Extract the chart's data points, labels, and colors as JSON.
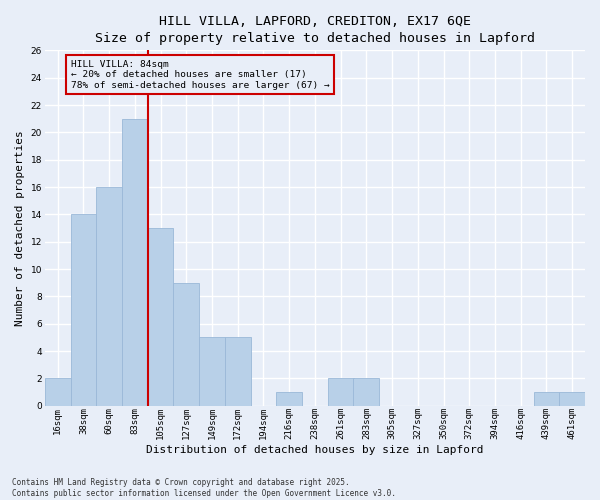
{
  "title_line1": "HILL VILLA, LAPFORD, CREDITON, EX17 6QE",
  "title_line2": "Size of property relative to detached houses in Lapford",
  "xlabel": "Distribution of detached houses by size in Lapford",
  "ylabel": "Number of detached properties",
  "footnote": "Contains HM Land Registry data © Crown copyright and database right 2025.\nContains public sector information licensed under the Open Government Licence v3.0.",
  "categories": [
    "16sqm",
    "38sqm",
    "60sqm",
    "83sqm",
    "105sqm",
    "127sqm",
    "149sqm",
    "172sqm",
    "194sqm",
    "216sqm",
    "238sqm",
    "261sqm",
    "283sqm",
    "305sqm",
    "327sqm",
    "350sqm",
    "372sqm",
    "394sqm",
    "416sqm",
    "439sqm",
    "461sqm"
  ],
  "values": [
    2,
    14,
    16,
    21,
    13,
    9,
    5,
    5,
    0,
    1,
    0,
    2,
    2,
    0,
    0,
    0,
    0,
    0,
    0,
    1,
    1
  ],
  "bar_color": "#b8d0e8",
  "bar_edgecolor": "#9ab8d8",
  "vline_x": 3.5,
  "vline_color": "#cc0000",
  "annotation_title": "HILL VILLA: 84sqm",
  "annotation_line1": "← 20% of detached houses are smaller (17)",
  "annotation_line2": "78% of semi-detached houses are larger (67) →",
  "annotation_box_color": "#cc0000",
  "ylim": [
    0,
    26
  ],
  "yticks": [
    0,
    2,
    4,
    6,
    8,
    10,
    12,
    14,
    16,
    18,
    20,
    22,
    24,
    26
  ],
  "background_color": "#e8eef8",
  "grid_color": "#ffffff",
  "title_fontsize": 9.5,
  "axis_label_fontsize": 8,
  "tick_fontsize": 6.5,
  "footnote_fontsize": 5.5,
  "annotation_fontsize": 6.8
}
